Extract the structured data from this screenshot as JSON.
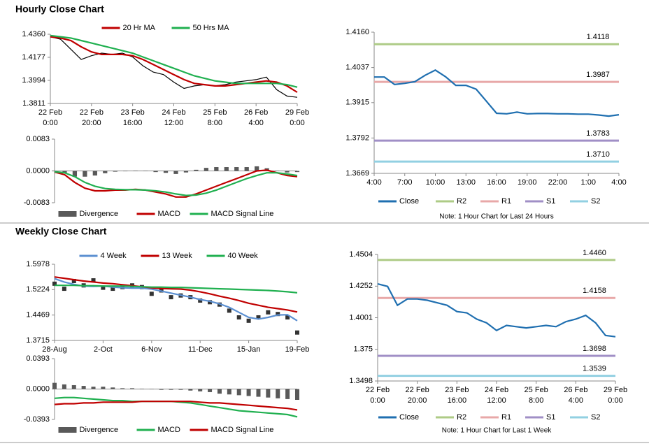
{
  "headings": [
    "Hourly Close Chart",
    "Weekly Close Chart"
  ],
  "chart_data": [
    {
      "type": "line",
      "legend": "top",
      "ylim": [
        1.3811,
        1.436
      ],
      "yticks": [
        1.3811,
        1.3994,
        1.4177,
        {
          "value": 1.436,
          "label": "1.4360"
        }
      ],
      "x_labels": [
        [
          "22 Feb",
          "0:00"
        ],
        [
          "22 Feb",
          "20:00"
        ],
        [
          "23 Feb",
          "16:00"
        ],
        [
          "24 Feb",
          "12:00"
        ],
        [
          "25 Feb",
          "8:00"
        ],
        [
          "26 Feb",
          "4:00"
        ],
        [
          "29 Feb",
          "0:00"
        ]
      ],
      "series": [
        {
          "color": "#000000",
          "values": [
            1.434,
            1.432,
            1.424,
            1.416,
            1.419,
            1.421,
            1.42,
            1.421,
            1.418,
            1.411,
            1.406,
            1.404,
            1.398,
            1.393,
            1.395,
            1.396,
            1.395,
            1.396,
            1.398,
            1.399,
            1.4,
            1.402,
            1.392,
            1.387,
            1.386
          ]
        },
        {
          "name": "20 Hr MA",
          "color": "#c00000",
          "values": [
            1.434,
            1.433,
            1.431,
            1.426,
            1.422,
            1.42,
            1.42,
            1.42,
            1.419,
            1.416,
            1.412,
            1.408,
            1.404,
            1.4,
            1.397,
            1.396,
            1.395,
            1.395,
            1.396,
            1.397,
            1.398,
            1.399,
            1.398,
            1.395,
            1.39
          ]
        },
        {
          "name": "50 Hrs MA",
          "color": "#20b050",
          "values": [
            1.435,
            1.434,
            1.433,
            1.431,
            1.429,
            1.427,
            1.425,
            1.423,
            1.421,
            1.418,
            1.415,
            1.412,
            1.409,
            1.406,
            1.403,
            1.401,
            1.399,
            1.398,
            1.397,
            1.397,
            1.397,
            1.397,
            1.397,
            1.396,
            1.394
          ]
        }
      ]
    },
    {
      "type": "combo",
      "legend": "bottom",
      "ylim": [
        -0.0083,
        0.0083
      ],
      "yticks": [
        -0.0083,
        {
          "value": 0,
          "label": "0.0000"
        },
        0.0083
      ],
      "series": [
        {
          "name": "Divergence",
          "kind": "bar",
          "color": "#595959",
          "values": [
            -0.0001,
            -0.0005,
            -0.0015,
            -0.0015,
            -0.0012,
            -0.0006,
            -0.0002,
            -0.0001,
            0.0001,
            0,
            -0.0003,
            -0.0005,
            -0.0008,
            -0.0004,
            0.0003,
            0.0008,
            0.001,
            0.001,
            0.001,
            0.001,
            0.0012,
            0.0007,
            0,
            -0.0004,
            -0.0003
          ]
        },
        {
          "name": "MACD",
          "color": "#c00000",
          "values": [
            -0.0003,
            -0.001,
            -0.003,
            -0.0045,
            -0.0052,
            -0.0052,
            -0.005,
            -0.005,
            -0.0048,
            -0.005,
            -0.0055,
            -0.006,
            -0.0068,
            -0.0068,
            -0.006,
            -0.005,
            -0.004,
            -0.003,
            -0.002,
            -0.001,
            0,
            0.0002,
            -0.0005,
            -0.0012,
            -0.0015
          ]
        },
        {
          "name": "MACD Signal Line",
          "color": "#20b050",
          "values": [
            -0.0002,
            -0.0005,
            -0.0015,
            -0.003,
            -0.004,
            -0.0046,
            -0.0048,
            -0.0049,
            -0.0049,
            -0.005,
            -0.0052,
            -0.0055,
            -0.006,
            -0.0064,
            -0.0063,
            -0.0058,
            -0.005,
            -0.004,
            -0.003,
            -0.002,
            -0.0012,
            -0.0005,
            -0.0005,
            -0.0008,
            -0.0012
          ]
        }
      ]
    },
    {
      "type": "pivot",
      "legend": "bottom",
      "note": "Note: 1 Hour Chart for Last 24 Hours",
      "ylim": [
        1.3669,
        1.416
      ],
      "yticks": [
        1.3669,
        1.3792,
        1.3915,
        1.4037,
        {
          "value": 1.416,
          "label": "1.4160"
        }
      ],
      "x_labels": [
        [
          "4:00"
        ],
        [
          "7:00"
        ],
        [
          "10:00"
        ],
        [
          "13:00"
        ],
        [
          "16:00"
        ],
        [
          "19:00"
        ],
        [
          "22:00"
        ],
        [
          "1:00"
        ],
        [
          "4:00"
        ]
      ],
      "series": [
        {
          "name": "Close",
          "color": "#1f6fb0",
          "values": [
            1.4004,
            1.4004,
            1.3978,
            1.3982,
            1.3988,
            1.401,
            1.4028,
            1.4005,
            1.3975,
            1.3975,
            1.3962,
            1.392,
            1.3878,
            1.3876,
            1.3882,
            1.3876,
            1.3877,
            1.3877,
            1.3876,
            1.3876,
            1.3875,
            1.3875,
            1.3872,
            1.3868,
            1.3873
          ]
        }
      ],
      "levels": [
        {
          "name": "R2",
          "value": 1.4118,
          "label": "1.4118",
          "color": "#aecb86"
        },
        {
          "name": "R1",
          "value": 1.3987,
          "label": "1.3987",
          "color": "#e8a8a8"
        },
        {
          "name": "S1",
          "value": 1.3783,
          "label": "1.3783",
          "color": "#a08fc6"
        },
        {
          "name": "S2",
          "value": 1.371,
          "label": "1.3710",
          "color": "#92d0e2"
        }
      ]
    },
    {
      "type": "line",
      "legend": "top",
      "ylim": [
        1.3715,
        1.5978
      ],
      "yticks": [
        1.3715,
        1.4469,
        1.5224,
        1.5978
      ],
      "x_labels": [
        [
          "28-Aug"
        ],
        [
          "2-Oct"
        ],
        [
          "6-Nov"
        ],
        [
          "11-Dec"
        ],
        [
          "15-Jan"
        ],
        [
          "19-Feb"
        ]
      ],
      "series": [
        {
          "kind": "marker",
          "color": "#333333",
          "values": [
            1.54,
            1.525,
            1.548,
            1.535,
            1.55,
            1.528,
            1.525,
            1.53,
            1.535,
            1.53,
            1.51,
            1.52,
            1.5,
            1.505,
            1.5,
            1.49,
            1.485,
            1.478,
            1.46,
            1.44,
            1.43,
            1.44,
            1.455,
            1.45,
            1.44,
            1.395
          ]
        },
        {
          "name": "4 Week",
          "color": "#5b8fd1",
          "values": [
            1.555,
            1.545,
            1.538,
            1.533,
            1.532,
            1.533,
            1.53,
            1.528,
            1.527,
            1.527,
            1.524,
            1.518,
            1.512,
            1.506,
            1.5,
            1.493,
            1.488,
            1.48,
            1.47,
            1.455,
            1.44,
            1.435,
            1.44,
            1.447,
            1.448,
            1.43
          ]
        },
        {
          "name": "13 Week",
          "color": "#c00000",
          "values": [
            1.56,
            1.556,
            1.552,
            1.548,
            1.545,
            1.542,
            1.54,
            1.537,
            1.534,
            1.531,
            1.528,
            1.526,
            1.525,
            1.524,
            1.521,
            1.516,
            1.51,
            1.503,
            1.497,
            1.49,
            1.482,
            1.476,
            1.47,
            1.466,
            1.462,
            1.456
          ]
        },
        {
          "name": "40 Week",
          "color": "#20b050",
          "values": [
            1.535,
            1.535,
            1.535,
            1.534,
            1.534,
            1.533,
            1.533,
            1.533,
            1.532,
            1.531,
            1.53,
            1.53,
            1.529,
            1.529,
            1.528,
            1.527,
            1.526,
            1.525,
            1.524,
            1.523,
            1.522,
            1.521,
            1.52,
            1.518,
            1.516,
            1.513
          ]
        }
      ]
    },
    {
      "type": "combo",
      "legend": "bottom",
      "ylim": [
        -0.0393,
        0.0393
      ],
      "yticks": [
        -0.0393,
        {
          "value": 0,
          "label": "0.0000"
        },
        0.0393
      ],
      "series": [
        {
          "name": "Divergence",
          "kind": "bar",
          "color": "#595959",
          "values": [
            0.008,
            0.006,
            0.005,
            0.004,
            0.003,
            0.003,
            0.002,
            0.001,
            0.001,
            0.0005,
            0,
            -0.001,
            -0.001,
            -0.001,
            -0.002,
            -0.003,
            -0.004,
            -0.006,
            -0.007,
            -0.008,
            -0.009,
            -0.01,
            -0.011,
            -0.012,
            -0.013,
            -0.014
          ]
        },
        {
          "name": "MACD",
          "color": "#20b050",
          "values": [
            -0.012,
            -0.011,
            -0.011,
            -0.012,
            -0.013,
            -0.014,
            -0.015,
            -0.015,
            -0.016,
            -0.016,
            -0.016,
            -0.016,
            -0.016,
            -0.017,
            -0.018,
            -0.02,
            -0.022,
            -0.024,
            -0.026,
            -0.028,
            -0.029,
            -0.03,
            -0.031,
            -0.032,
            -0.033,
            -0.036
          ]
        },
        {
          "name": "MACD Signal Line",
          "color": "#c00000",
          "values": [
            -0.02,
            -0.019,
            -0.019,
            -0.018,
            -0.018,
            -0.017,
            -0.017,
            -0.017,
            -0.017,
            -0.016,
            -0.016,
            -0.016,
            -0.016,
            -0.016,
            -0.016,
            -0.017,
            -0.018,
            -0.018,
            -0.019,
            -0.02,
            -0.021,
            -0.022,
            -0.023,
            -0.024,
            -0.025,
            -0.027
          ]
        }
      ]
    },
    {
      "type": "pivot",
      "legend": "bottom",
      "note": "Note: 1 Hour Chart for Last 1 Week",
      "ylim": [
        1.3498,
        1.4504
      ],
      "yticks": [
        1.3498,
        1.375,
        1.4001,
        1.4252,
        1.4504
      ],
      "x_labels": [
        [
          "22 Feb",
          "0:00"
        ],
        [
          "22 Feb",
          "20:00"
        ],
        [
          "23 Feb",
          "16:00"
        ],
        [
          "24 Feb",
          "12:00"
        ],
        [
          "25 Feb",
          "8:00"
        ],
        [
          "26 Feb",
          "4:00"
        ],
        [
          "29 Feb",
          "0:00"
        ]
      ],
      "series": [
        {
          "name": "Close",
          "color": "#1f6fb0",
          "values": [
            1.427,
            1.425,
            1.41,
            1.415,
            1.415,
            1.414,
            1.412,
            1.41,
            1.405,
            1.404,
            1.399,
            1.396,
            1.39,
            1.394,
            1.393,
            1.392,
            1.393,
            1.394,
            1.393,
            1.397,
            1.399,
            1.402,
            1.396,
            1.386,
            1.385
          ]
        }
      ],
      "levels": [
        {
          "name": "R2",
          "value": 1.446,
          "label": "1.4460",
          "color": "#aecb86"
        },
        {
          "name": "R1",
          "value": 1.4158,
          "label": "1.4158",
          "color": "#e8a8a8"
        },
        {
          "name": "S1",
          "value": 1.3698,
          "label": "1.3698",
          "color": "#a08fc6"
        },
        {
          "name": "S2",
          "value": 1.3539,
          "label": "1.3539",
          "color": "#92d0e2"
        }
      ]
    }
  ]
}
